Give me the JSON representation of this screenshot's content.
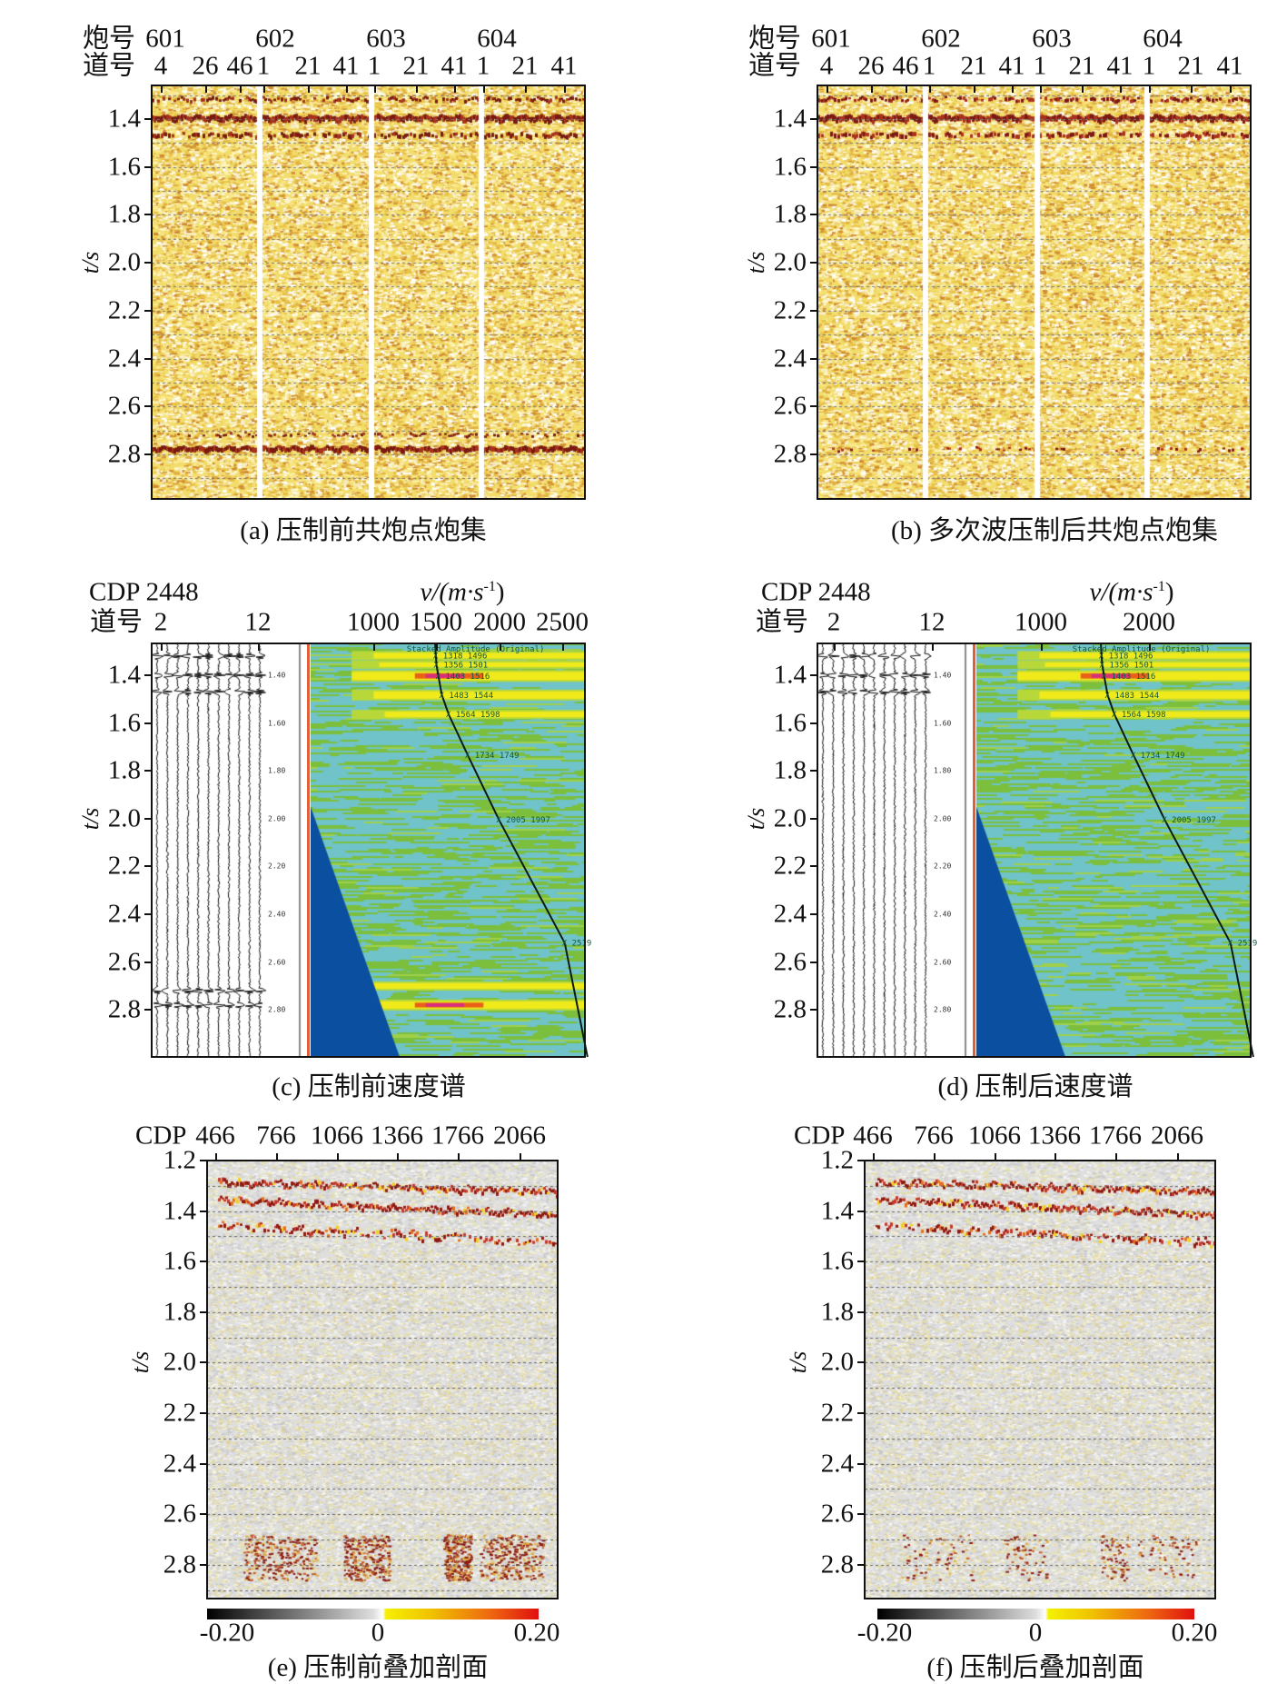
{
  "panels": [
    {
      "id": "a",
      "caption": "(a) 压制前共炮点炮集",
      "row1_label": "炮号",
      "row2_label": "道号",
      "shots": [
        "601",
        "602",
        "603",
        "604"
      ],
      "traces": [
        "4",
        "26",
        "46",
        "1",
        "21",
        "41",
        "1",
        "21",
        "41",
        "1",
        "21",
        "41"
      ],
      "y_label": "t/s",
      "y_ticks": [
        "1.4",
        "1.6",
        "1.8",
        "2.0",
        "2.2",
        "2.4",
        "2.6",
        "2.8"
      ]
    },
    {
      "id": "b",
      "caption": "(b) 多次波压制后共炮点炮集",
      "row1_label": "炮号",
      "row2_label": "道号",
      "shots": [
        "601",
        "602",
        "603",
        "604"
      ],
      "traces": [
        "4",
        "26",
        "46",
        "1",
        "21",
        "41",
        "1",
        "21",
        "41",
        "1",
        "21",
        "41"
      ],
      "y_label": "t/s",
      "y_ticks": [
        "1.4",
        "1.6",
        "1.8",
        "2.0",
        "2.2",
        "2.4",
        "2.6",
        "2.8"
      ]
    },
    {
      "id": "c",
      "caption": "(c) 压制前速度谱",
      "cdp_label": "CDP",
      "cdp_value": "2448",
      "row2_label": "道号",
      "traces": [
        "2",
        "12"
      ],
      "v_label": "v/(m·s",
      "v_label_sup": "-1",
      "v_label_end": ")",
      "v_ticks": [
        "1000",
        "1500",
        "2000",
        "2500"
      ],
      "y_label": "t/s",
      "y_ticks": [
        "1.4",
        "1.6",
        "1.8",
        "2.0",
        "2.2",
        "2.4",
        "2.6",
        "2.8"
      ],
      "gather_ticks": [
        "1.40",
        "1.60",
        "1.80",
        "2.00",
        "2.20",
        "2.40",
        "2.60",
        "2.80"
      ],
      "spectrum_title": "Stacked Amplitude (Original)"
    },
    {
      "id": "d",
      "caption": "(d) 压制后速度谱",
      "cdp_label": "CDP",
      "cdp_value": "2448",
      "row2_label": "道号",
      "traces": [
        "2",
        "12"
      ],
      "v_label": "v/(m·s",
      "v_label_sup": "-1",
      "v_label_end": ")",
      "v_ticks": [
        "1000",
        "2000"
      ],
      "y_label": "t/s",
      "y_ticks": [
        "1.4",
        "1.6",
        "1.8",
        "2.0",
        "2.2",
        "2.4",
        "2.6",
        "2.8"
      ],
      "gather_ticks": [
        "1.40",
        "1.60",
        "1.80",
        "2.00",
        "2.20",
        "2.40",
        "2.60",
        "2.80"
      ],
      "spectrum_title": "Stacked Amplitude (Original)"
    },
    {
      "id": "e",
      "caption": "(e) 压制前叠加剖面",
      "cdp_label": "CDP",
      "cdp_ticks": [
        "466",
        "766",
        "1066",
        "1366",
        "1766",
        "2066"
      ],
      "y_label": "t/s",
      "y_ticks": [
        "1.2",
        "1.4",
        "1.6",
        "1.8",
        "2.0",
        "2.2",
        "2.4",
        "2.6",
        "2.8"
      ],
      "colorbar": [
        "-0.20",
        "0",
        "0.20"
      ]
    },
    {
      "id": "f",
      "caption": "(f) 压制后叠加剖面",
      "cdp_label": "CDP",
      "cdp_ticks": [
        "466",
        "766",
        "1066",
        "1366",
        "1766",
        "2066"
      ],
      "y_label": "t/s",
      "y_ticks": [
        "1.2",
        "1.4",
        "1.6",
        "1.8",
        "2.0",
        "2.2",
        "2.4",
        "2.6",
        "2.8"
      ],
      "colorbar": [
        "-0.20",
        "0",
        "0.20"
      ]
    }
  ],
  "velocity_picks": [
    {
      "t": 1.318,
      "v": 1496,
      "label": "1318 1496"
    },
    {
      "t": 1.356,
      "v": 1501,
      "label": "1356 1501"
    },
    {
      "t": 1.403,
      "v": 1516,
      "label": "1403 1516"
    },
    {
      "t": 1.483,
      "v": 1544,
      "label": "1483 1544"
    },
    {
      "t": 1.564,
      "v": 1598,
      "label": "1564 1598"
    },
    {
      "t": 1.734,
      "v": 1749,
      "label": "1734 1749"
    },
    {
      "t": 2.005,
      "v": 1997,
      "label": "2005 1997"
    },
    {
      "t": 2.52,
      "v": 2519,
      "label": "2519"
    }
  ],
  "colors": {
    "gather_bg": "#f2dc6a",
    "reflector": "#7a1a10",
    "spectrum_bg": "#6fc3c9",
    "spectrum_green": "#7cbf3c",
    "mute_blue": "#0a4fa0",
    "stack_bg": "#dedede"
  }
}
